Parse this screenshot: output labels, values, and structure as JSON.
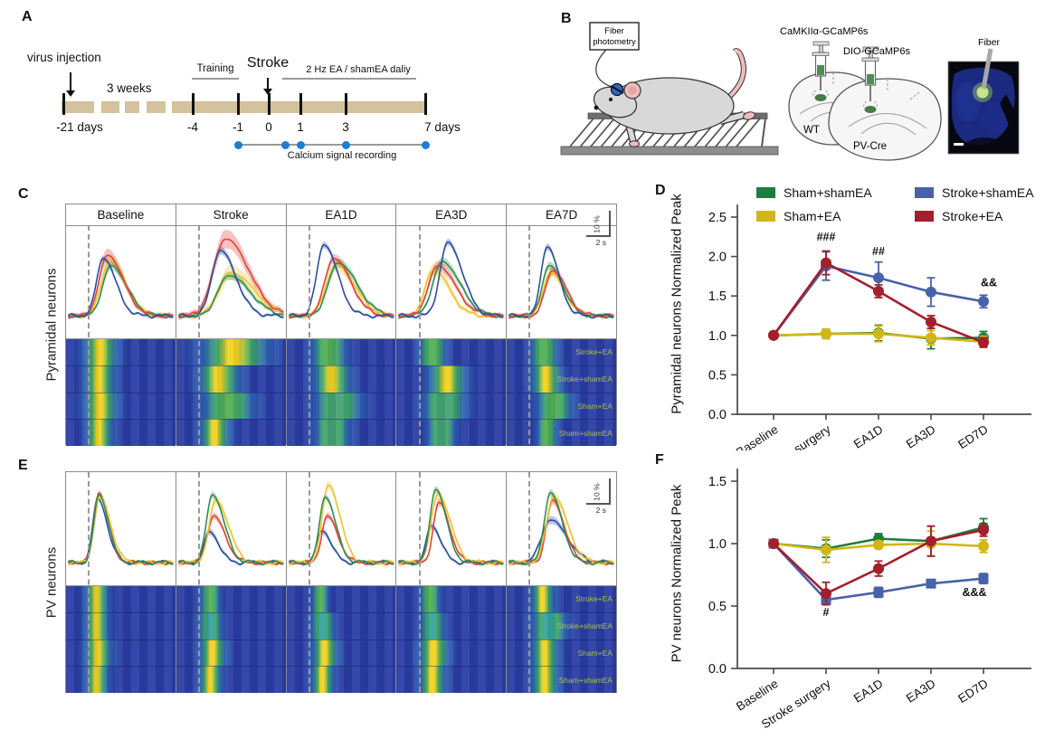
{
  "panels": {
    "a": "A",
    "b": "B",
    "c": "C",
    "d": "D",
    "e": "E",
    "f": "F"
  },
  "timeline": {
    "virus_injection": "virus injection",
    "three_weeks": "3 weeks",
    "training": "Training",
    "stroke": "Stroke",
    "ea_daily": "2 Hz EA / shamEA  daliy",
    "recording": "Calcium signal recording",
    "ticks": [
      "-21 days",
      "-4",
      "-1",
      "0",
      "1",
      "3",
      "7 days"
    ]
  },
  "setup": {
    "device_line1": "Fiber",
    "device_line2": "photometry",
    "virus1": "CaMKIIα-GCaMP6s",
    "virus2": "DIO-GCaMP6s",
    "mouse1": "WT",
    "mouse2": "PV-Cre",
    "fiber": "Fiber"
  },
  "groups": [
    {
      "name": "Sham+shamEA",
      "color": "#1e7d3e"
    },
    {
      "name": "Sham+EA",
      "color": "#d2b616"
    },
    {
      "name": "Stroke+shamEA",
      "color": "#4862aa"
    },
    {
      "name": "Stroke+EA",
      "color": "#a31f2b"
    }
  ],
  "trace_panels": {
    "columns": [
      "Baseline",
      "Stroke",
      "EA1D",
      "EA3D",
      "EA7D"
    ],
    "scale_vertical": "10 %",
    "scale_horizontal": "2 s",
    "heat_row_labels": [
      "Stroke+EA",
      "Stroke+shamEA",
      "Sham+EA",
      "Sham+shamEA"
    ],
    "palette": {
      "red": "#e34239",
      "yellow": "#efc430",
      "green": "#318f50",
      "blue": "#2b4fa4"
    },
    "pyramidal": {
      "label": "Pyramidal neurons",
      "traces": [
        [
          {
            "c": "yellow",
            "a": 0.58,
            "t": 0.4,
            "w": 0.15,
            "b": 0.1
          },
          {
            "c": "green",
            "a": 0.52,
            "t": 0.41,
            "w": 0.15,
            "b": 0.07
          },
          {
            "c": "red",
            "a": 0.63,
            "t": 0.38,
            "w": 0.15,
            "b": 0.11
          },
          {
            "c": "blue",
            "a": 0.6,
            "t": 0.34,
            "w": 0.12,
            "b": 0.04
          }
        ],
        [
          {
            "c": "yellow",
            "a": 0.45,
            "t": 0.5,
            "w": 0.22,
            "b": 0.13
          },
          {
            "c": "green",
            "a": 0.42,
            "t": 0.48,
            "w": 0.2,
            "b": 0.06
          },
          {
            "c": "red",
            "a": 0.8,
            "t": 0.45,
            "w": 0.22,
            "b": 0.16
          },
          {
            "c": "blue",
            "a": 0.68,
            "t": 0.4,
            "w": 0.15,
            "b": 0.06
          }
        ],
        [
          {
            "c": "yellow",
            "a": 0.52,
            "t": 0.45,
            "w": 0.18,
            "b": 0.1
          },
          {
            "c": "green",
            "a": 0.55,
            "t": 0.47,
            "w": 0.18,
            "b": 0.07
          },
          {
            "c": "red",
            "a": 0.6,
            "t": 0.43,
            "w": 0.16,
            "b": 0.07
          },
          {
            "c": "blue",
            "a": 0.74,
            "t": 0.34,
            "w": 0.13,
            "b": 0.05
          }
        ],
        [
          {
            "c": "yellow",
            "a": 0.48,
            "t": 0.34,
            "w": 0.15,
            "b": 0.1
          },
          {
            "c": "green",
            "a": 0.56,
            "t": 0.42,
            "w": 0.17,
            "b": 0.07
          },
          {
            "c": "red",
            "a": 0.52,
            "t": 0.38,
            "w": 0.17,
            "b": 0.08
          },
          {
            "c": "blue",
            "a": 0.76,
            "t": 0.47,
            "w": 0.14,
            "b": 0.05
          }
        ],
        [
          {
            "c": "yellow",
            "a": 0.45,
            "t": 0.4,
            "w": 0.13,
            "b": 0.08
          },
          {
            "c": "green",
            "a": 0.52,
            "t": 0.39,
            "w": 0.13,
            "b": 0.06
          },
          {
            "c": "red",
            "a": 0.47,
            "t": 0.42,
            "w": 0.13,
            "b": 0.07
          },
          {
            "c": "blue",
            "a": 0.72,
            "t": 0.37,
            "w": 0.11,
            "b": 0.05
          }
        ]
      ],
      "heat": [
        [
          {
            "p": 30,
            "w": 9,
            "c": "#f2d321"
          },
          {
            "p": 29,
            "w": 8,
            "c": "#f2d321"
          },
          {
            "p": 30,
            "w": 9,
            "c": "#f2d321"
          },
          {
            "p": 29,
            "w": 7,
            "c": "#f2d321"
          }
        ],
        [
          {
            "p": 50,
            "w": 18,
            "c": "#f2d321"
          },
          {
            "p": 37,
            "w": 11,
            "c": "#f2d321"
          },
          {
            "p": 45,
            "w": 13,
            "c": "#55b054"
          },
          {
            "p": 34,
            "w": 8,
            "c": "#f2d321"
          }
        ],
        [
          {
            "p": 37,
            "w": 9,
            "c": "#55b054"
          },
          {
            "p": 40,
            "w": 10,
            "c": "#f2d321"
          },
          {
            "p": 45,
            "w": 12,
            "c": "#46a375"
          },
          {
            "p": 40,
            "w": 9,
            "c": "#46a375"
          }
        ],
        [
          {
            "p": 32,
            "w": 7,
            "c": "#55b054"
          },
          {
            "p": 45,
            "w": 10,
            "c": "#f2d321"
          },
          {
            "p": 42,
            "w": 11,
            "c": "#46a375"
          },
          {
            "p": 40,
            "w": 7,
            "c": "#46a375"
          }
        ],
        [
          {
            "p": 33,
            "w": 7,
            "c": "#55b054"
          },
          {
            "p": 35,
            "w": 8,
            "c": "#f2d321"
          },
          {
            "p": 42,
            "w": 9,
            "c": "#55b054"
          },
          {
            "p": 36,
            "w": 5,
            "c": "#55b054"
          }
        ]
      ]
    },
    "pv": {
      "label": "PV neurons",
      "traces": [
        [
          {
            "c": "blue",
            "a": 0.66,
            "t": 0.29,
            "w": 0.09,
            "b": 0.03
          },
          {
            "c": "red",
            "a": 0.72,
            "t": 0.3,
            "w": 0.09,
            "b": 0.04
          },
          {
            "c": "yellow",
            "a": 0.68,
            "t": 0.31,
            "w": 0.1,
            "b": 0.05
          },
          {
            "c": "green",
            "a": 0.7,
            "t": 0.3,
            "w": 0.09,
            "b": 0.04
          }
        ],
        [
          {
            "c": "blue",
            "a": 0.32,
            "t": 0.3,
            "w": 0.09,
            "b": 0.05
          },
          {
            "c": "red",
            "a": 0.48,
            "t": 0.34,
            "w": 0.11,
            "b": 0.05
          },
          {
            "c": "yellow",
            "a": 0.64,
            "t": 0.36,
            "w": 0.12,
            "b": 0.07
          },
          {
            "c": "green",
            "a": 0.7,
            "t": 0.33,
            "w": 0.11,
            "b": 0.05
          }
        ],
        [
          {
            "c": "blue",
            "a": 0.33,
            "t": 0.32,
            "w": 0.09,
            "b": 0.05
          },
          {
            "c": "red",
            "a": 0.48,
            "t": 0.37,
            "w": 0.1,
            "b": 0.05
          },
          {
            "c": "yellow",
            "a": 0.8,
            "t": 0.38,
            "w": 0.11,
            "b": 0.07
          },
          {
            "c": "green",
            "a": 0.68,
            "t": 0.35,
            "w": 0.1,
            "b": 0.05
          }
        ],
        [
          {
            "c": "blue",
            "a": 0.38,
            "t": 0.32,
            "w": 0.09,
            "b": 0.05
          },
          {
            "c": "red",
            "a": 0.62,
            "t": 0.39,
            "w": 0.1,
            "b": 0.06
          },
          {
            "c": "yellow",
            "a": 0.7,
            "t": 0.38,
            "w": 0.12,
            "b": 0.08
          },
          {
            "c": "green",
            "a": 0.76,
            "t": 0.36,
            "w": 0.1,
            "b": 0.05
          }
        ],
        [
          {
            "c": "blue",
            "a": 0.44,
            "t": 0.4,
            "w": 0.16,
            "b": 0.06
          },
          {
            "c": "red",
            "a": 0.64,
            "t": 0.42,
            "w": 0.11,
            "b": 0.07
          },
          {
            "c": "yellow",
            "a": 0.68,
            "t": 0.43,
            "w": 0.13,
            "b": 0.08
          },
          {
            "c": "green",
            "a": 0.72,
            "t": 0.4,
            "w": 0.11,
            "b": 0.05
          }
        ]
      ],
      "heat": [
        [
          {
            "p": 27,
            "w": 6,
            "c": "#f2d321"
          },
          {
            "p": 27,
            "w": 6,
            "c": "#f2d321"
          },
          {
            "p": 28,
            "w": 7,
            "c": "#f2d321"
          },
          {
            "p": 27,
            "w": 6,
            "c": "#f2d321"
          }
        ],
        [
          {
            "p": 30,
            "w": 5,
            "c": "#55b054"
          },
          {
            "p": 30,
            "w": 6,
            "c": "#35a49e"
          },
          {
            "p": 32,
            "w": 7,
            "c": "#f2d321"
          },
          {
            "p": 30,
            "w": 6,
            "c": "#f2d321"
          }
        ],
        [
          {
            "p": 30,
            "w": 4,
            "c": "#55b054"
          },
          {
            "p": 32,
            "w": 6,
            "c": "#35a49e"
          },
          {
            "p": 34,
            "w": 7,
            "c": "#f2d321"
          },
          {
            "p": 32,
            "w": 6,
            "c": "#f2d321"
          }
        ],
        [
          {
            "p": 30,
            "w": 5,
            "c": "#55b054"
          },
          {
            "p": 32,
            "w": 6,
            "c": "#35a49e"
          },
          {
            "p": 33,
            "w": 8,
            "c": "#f2d321"
          },
          {
            "p": 32,
            "w": 7,
            "c": "#f2d321"
          }
        ],
        [
          {
            "p": 32,
            "w": 6,
            "c": "#f2d321"
          },
          {
            "p": 37,
            "w": 9,
            "c": "#35a49e"
          },
          {
            "p": 34,
            "w": 7,
            "c": "#f2d321"
          },
          {
            "p": 34,
            "w": 7,
            "c": "#f2d321"
          }
        ]
      ]
    }
  },
  "chart_data": [
    {
      "type": "line",
      "panel": "D",
      "ylabel": "Pyramidal neurons  Normalized Peak",
      "categories": [
        "Baseline",
        "Stroke surgery",
        "EA1D",
        "EA3D",
        "ED7D"
      ],
      "ylim": [
        0,
        2.5
      ],
      "ytick_step": 0.5,
      "legend_position": "top",
      "series": [
        {
          "name": "Sham+shamEA",
          "color": "#1e7d3e",
          "marker": "circle",
          "values": [
            1.0,
            1.02,
            1.03,
            0.96,
            0.97
          ],
          "errors": [
            0,
            0.06,
            0.1,
            0.13,
            0.08
          ]
        },
        {
          "name": "Sham+EA",
          "color": "#d2b616",
          "marker": "circle",
          "values": [
            1.0,
            1.02,
            1.02,
            0.97,
            0.92
          ],
          "errors": [
            0,
            0.06,
            0.1,
            0.09,
            0.07
          ]
        },
        {
          "name": "Stroke+shamEA",
          "color": "#4862aa",
          "marker": "circle",
          "values": [
            1.0,
            1.88,
            1.73,
            1.55,
            1.43
          ],
          "errors": [
            0,
            0.18,
            0.2,
            0.18,
            0.08
          ]
        },
        {
          "name": "Stroke+EA",
          "color": "#a31f2b",
          "marker": "circle",
          "values": [
            1.0,
            1.92,
            1.56,
            1.17,
            0.91
          ],
          "errors": [
            0,
            0.15,
            0.08,
            0.08,
            0.06
          ]
        }
      ],
      "annotations": [
        {
          "text": "###",
          "i": 1,
          "y": 2.2,
          "dx": 0
        },
        {
          "text": "##",
          "i": 2,
          "y": 2.02,
          "dx": 0
        },
        {
          "text": "&&",
          "i": 4,
          "y": 1.62,
          "dx": 6
        }
      ]
    },
    {
      "type": "line",
      "panel": "F",
      "ylabel": "PV neurons Normalized Peak",
      "categories": [
        "Baseline",
        "Stroke surgery",
        "EA1D",
        "EA3D",
        "ED7D"
      ],
      "ylim": [
        0,
        1.5
      ],
      "ytick_step": 0.5,
      "series": [
        {
          "name": "Sham+shamEA",
          "color": "#1e7d3e",
          "marker": "circle",
          "values": [
            1.0,
            0.96,
            1.04,
            1.02,
            1.13
          ],
          "errors": [
            0,
            0.07,
            0.04,
            0.12,
            0.07
          ]
        },
        {
          "name": "Sham+EA",
          "color": "#d2b616",
          "marker": "circle",
          "values": [
            1.0,
            0.95,
            0.99,
            1.0,
            0.98
          ],
          "errors": [
            0,
            0.1,
            0.03,
            0.1,
            0.05
          ]
        },
        {
          "name": "Stroke+shamEA",
          "color": "#4862aa",
          "marker": "square",
          "values": [
            1.0,
            0.55,
            0.61,
            0.68,
            0.72
          ],
          "errors": [
            0,
            0.03,
            0.04,
            0.03,
            0.04
          ]
        },
        {
          "name": "Stroke+EA",
          "color": "#a31f2b",
          "marker": "circle",
          "values": [
            1.0,
            0.6,
            0.8,
            1.02,
            1.11
          ],
          "errors": [
            0,
            0.09,
            0.06,
            0.12,
            0.05
          ]
        }
      ],
      "annotations": [
        {
          "text": "#",
          "i": 1,
          "y": 0.42,
          "dx": 0
        },
        {
          "text": "&&&",
          "i": 4,
          "y": 0.58,
          "dx": -10
        }
      ]
    }
  ]
}
